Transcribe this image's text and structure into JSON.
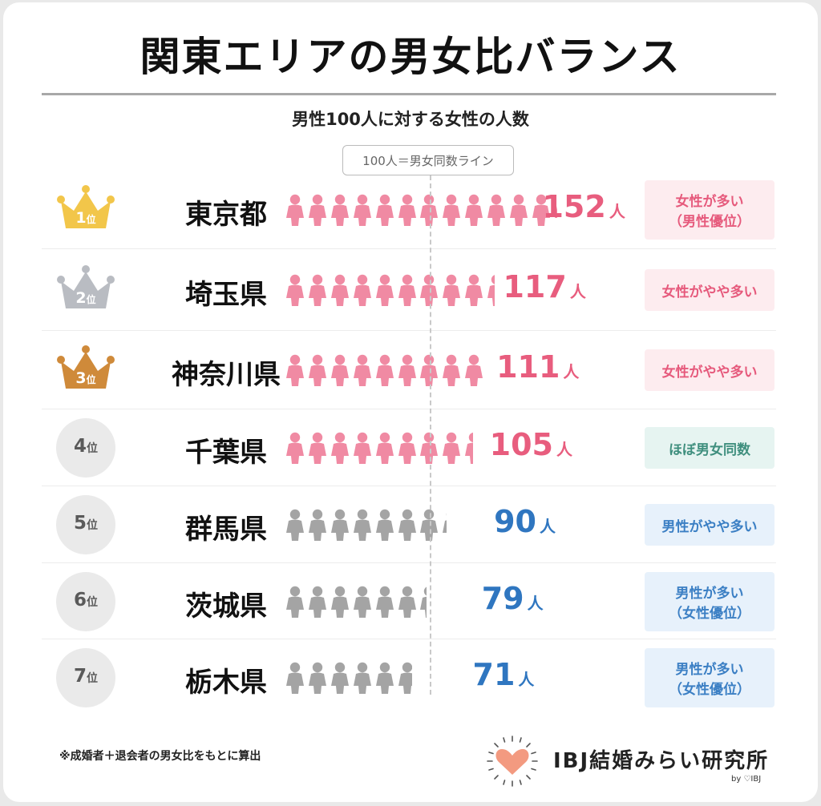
{
  "title": "関東エリアの男女比バランス",
  "subtitle": "男性100人に対する女性の人数",
  "baseline_label": "100人＝男女同数ライン",
  "note": "※成婚者＋退会者の男女比をもとに算出",
  "logo": {
    "text": "IBJ結婚みらい研究所",
    "by": "by ♡IBJ"
  },
  "colors": {
    "female": "#f08aa3",
    "male": "#a4a4a4",
    "gold": "#f2c64a",
    "silver": "#b9bcc2",
    "bronze": "#cf8a3a"
  },
  "chart_data": {
    "type": "bar",
    "categories": [
      "東京都",
      "埼玉県",
      "神奈川県",
      "千葉県",
      "群馬県",
      "茨城県",
      "栃木県"
    ],
    "values": [
      152,
      117,
      111,
      105,
      90,
      79,
      71
    ],
    "unit": "人",
    "baseline": 100
  },
  "rows": [
    {
      "rank_num": "1",
      "rank_suffix": "位",
      "badge": "gold",
      "pref": "東京都",
      "value": "152",
      "unit": "人",
      "tag": [
        "女性が多い",
        "（男性優位）"
      ],
      "tag_style": "pink"
    },
    {
      "rank_num": "2",
      "rank_suffix": "位",
      "badge": "silver",
      "pref": "埼玉県",
      "value": "117",
      "unit": "人",
      "tag": [
        "女性がやや多い"
      ],
      "tag_style": "pink"
    },
    {
      "rank_num": "3",
      "rank_suffix": "位",
      "badge": "bronze",
      "pref": "神奈川県",
      "value": "111",
      "unit": "人",
      "tag": [
        "女性がやや多い"
      ],
      "tag_style": "pink"
    },
    {
      "rank_num": "4",
      "rank_suffix": "位",
      "badge": "circle",
      "pref": "千葉県",
      "value": "105",
      "unit": "人",
      "tag": [
        "ほぼ男女同数"
      ],
      "tag_style": "teal"
    },
    {
      "rank_num": "5",
      "rank_suffix": "位",
      "badge": "circle",
      "pref": "群馬県",
      "value": "90",
      "unit": "人",
      "tag": [
        "男性がやや多い"
      ],
      "tag_style": "blue"
    },
    {
      "rank_num": "6",
      "rank_suffix": "位",
      "badge": "circle",
      "pref": "茨城県",
      "value": "79",
      "unit": "人",
      "tag": [
        "男性が多い",
        "（女性優位）"
      ],
      "tag_style": "blue"
    },
    {
      "rank_num": "7",
      "rank_suffix": "位",
      "badge": "circle",
      "pref": "栃木県",
      "value": "71",
      "unit": "人",
      "tag": [
        "男性が多い",
        "（女性優位）"
      ],
      "tag_style": "blue"
    }
  ]
}
